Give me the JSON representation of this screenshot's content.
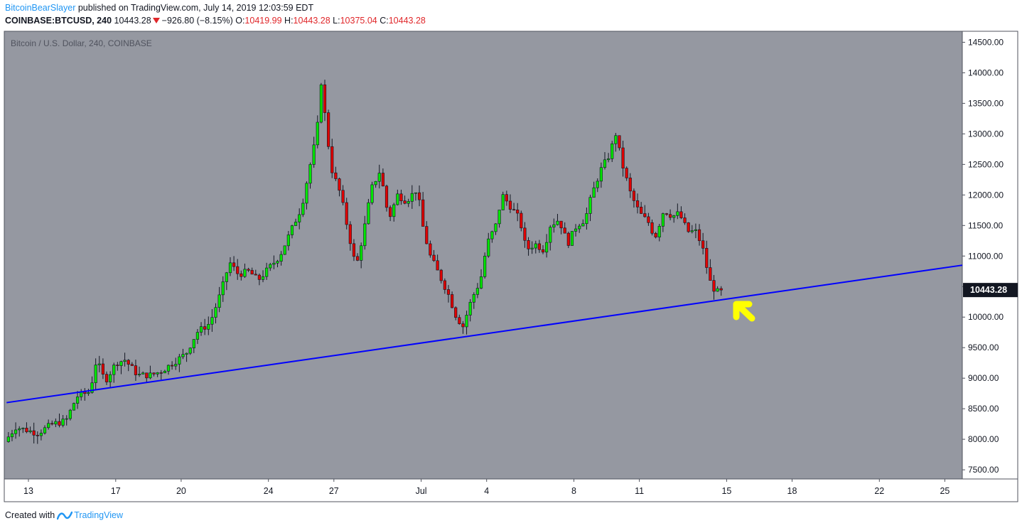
{
  "header": {
    "author": "BitcoinBearSlayer",
    "published_text": "published on TradingView.com, July 14, 2019 12:03:59 EDT",
    "symbol": "COINBASE:BTCUSD, 240",
    "last": "10443.28",
    "change": "−926.80 (−8.15%)",
    "o_label": "O:",
    "o_value": "10419.99",
    "h_label": "H:",
    "h_value": "10443.28",
    "l_label": "L:",
    "l_value": "10375.04",
    "c_label": "C:",
    "c_value": "10443.28"
  },
  "footer": {
    "created_with": "Created with",
    "brand": "TradingView"
  },
  "colors": {
    "background": "#9598a1",
    "up": "#00e600",
    "down": "#e00000",
    "wick": "#131722",
    "trendline": "#0000ff",
    "annotation_arrow": "#ffff00",
    "price_tag": "#131722"
  },
  "chart_data": {
    "type": "candlestick",
    "title": "Bitcoin / U.S. Dollar, 240, COINBASE",
    "y_ticks": [
      "14500.00",
      "14000.00",
      "13500.00",
      "13000.00",
      "12500.00",
      "12000.00",
      "11500.00",
      "11000.00",
      "10500.00",
      "10000.00",
      "9500.00",
      "9000.00",
      "8500.00",
      "8000.00",
      "7500.00"
    ],
    "ylim": [
      7350,
      14680
    ],
    "y_axis_side": "right",
    "x_tick_labels": [
      {
        "label": "13",
        "day": 13
      },
      {
        "label": "17",
        "day": 17
      },
      {
        "label": "20",
        "day": 20
      },
      {
        "label": "24",
        "day": 24
      },
      {
        "label": "27",
        "day": 27
      },
      {
        "label": "Jul",
        "day": 31
      },
      {
        "label": "4",
        "day": 34
      },
      {
        "label": "8",
        "day": 38
      },
      {
        "label": "11",
        "day": 41
      },
      {
        "label": "15",
        "day": 45
      },
      {
        "label": "18",
        "day": 48
      },
      {
        "label": "22",
        "day": 52
      },
      {
        "label": "25",
        "day": 55
      }
    ],
    "x_axis_unit": "days since June 0, 2019",
    "last_price_label": "10443.28",
    "last_price": 10443.28,
    "trendline": {
      "start": {
        "day": 12.0,
        "price": 8600
      },
      "end": {
        "day": 55.9,
        "price": 10850
      }
    },
    "anchors": [
      [
        12.0,
        7960
      ],
      [
        12.5,
        8200
      ],
      [
        13.5,
        8100
      ],
      [
        14.2,
        8250
      ],
      [
        14.8,
        8300
      ],
      [
        15.3,
        8700
      ],
      [
        15.9,
        8780
      ],
      [
        16.2,
        9300
      ],
      [
        16.6,
        8950
      ],
      [
        17.1,
        9250
      ],
      [
        17.5,
        9300
      ],
      [
        18.1,
        9050
      ],
      [
        18.7,
        9050
      ],
      [
        19.2,
        9120
      ],
      [
        19.7,
        9250
      ],
      [
        20.3,
        9400
      ],
      [
        20.8,
        9750
      ],
      [
        21.4,
        9900
      ],
      [
        21.9,
        10400
      ],
      [
        22.3,
        10900
      ],
      [
        22.7,
        10700
      ],
      [
        23.2,
        10750
      ],
      [
        23.6,
        10600
      ],
      [
        24.1,
        10800
      ],
      [
        24.6,
        11000
      ],
      [
        25.1,
        11400
      ],
      [
        25.6,
        11800
      ],
      [
        26.0,
        12500
      ],
      [
        26.3,
        13000
      ],
      [
        26.5,
        13850
      ],
      [
        26.8,
        12900
      ],
      [
        27.0,
        12400
      ],
      [
        27.4,
        12000
      ],
      [
        27.8,
        11300
      ],
      [
        28.1,
        10800
      ],
      [
        28.5,
        11500
      ],
      [
        28.8,
        12100
      ],
      [
        29.2,
        12400
      ],
      [
        29.6,
        11600
      ],
      [
        30.0,
        12000
      ],
      [
        30.4,
        11900
      ],
      [
        30.9,
        12100
      ],
      [
        31.2,
        11400
      ],
      [
        31.5,
        11000
      ],
      [
        31.9,
        10700
      ],
      [
        32.3,
        10400
      ],
      [
        32.7,
        10000
      ],
      [
        33.0,
        9850
      ],
      [
        33.4,
        10300
      ],
      [
        33.8,
        10600
      ],
      [
        34.1,
        11200
      ],
      [
        34.5,
        11500
      ],
      [
        34.8,
        12000
      ],
      [
        35.2,
        11800
      ],
      [
        35.6,
        11600
      ],
      [
        35.9,
        11100
      ],
      [
        36.3,
        11200
      ],
      [
        36.7,
        11100
      ],
      [
        37.0,
        11500
      ],
      [
        37.4,
        11600
      ],
      [
        37.8,
        11200
      ],
      [
        38.2,
        11500
      ],
      [
        38.6,
        11600
      ],
      [
        38.9,
        12000
      ],
      [
        39.3,
        12400
      ],
      [
        39.7,
        12650
      ],
      [
        40.0,
        13000
      ],
      [
        40.3,
        12500
      ],
      [
        40.7,
        12000
      ],
      [
        41.1,
        11700
      ],
      [
        41.5,
        11550
      ],
      [
        41.8,
        11300
      ],
      [
        42.2,
        11750
      ],
      [
        42.6,
        11650
      ],
      [
        42.9,
        11700
      ],
      [
        43.3,
        11400
      ],
      [
        43.7,
        11400
      ],
      [
        44.0,
        11100
      ],
      [
        44.3,
        10600
      ],
      [
        44.6,
        10400
      ],
      [
        44.8,
        10443
      ]
    ]
  }
}
